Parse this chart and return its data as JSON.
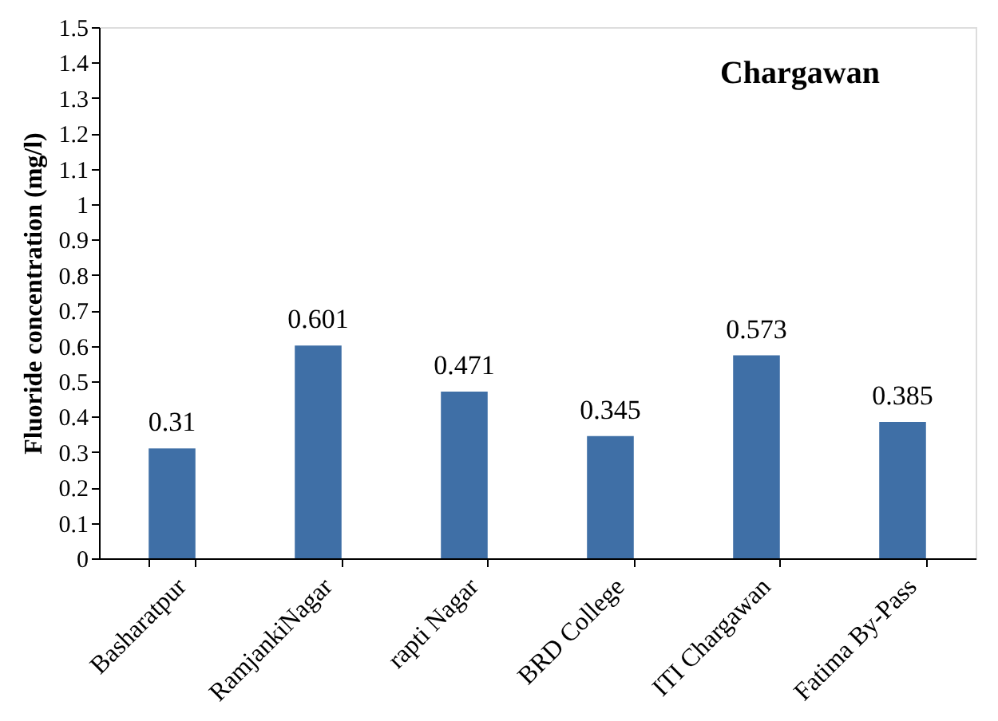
{
  "chart_data": {
    "type": "bar",
    "title": "Chargawan",
    "ylabel": "Fluoride concentration (mg/l)",
    "categories": [
      "Basharatpur",
      "RamjankiNagar",
      "rapti Nagar",
      "BRD College",
      "ITI Chargawan",
      "Fatima By-Pass"
    ],
    "values": [
      0.31,
      0.601,
      0.471,
      0.345,
      0.573,
      0.385
    ],
    "color": "#3f6fa6",
    "ylim": [
      0,
      1.5
    ],
    "yticks": [
      0,
      0.1,
      0.2,
      0.3,
      0.4,
      0.5,
      0.6,
      0.7,
      0.8,
      0.9,
      1,
      1.1,
      1.2,
      1.3,
      1.4,
      1.5
    ],
    "data_labels": true,
    "grid": false
  }
}
